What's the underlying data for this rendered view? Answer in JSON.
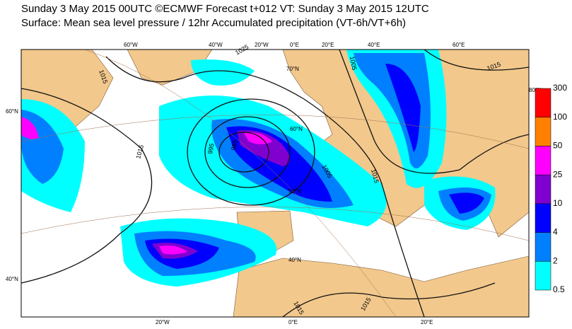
{
  "header": {
    "title": "Sunday 3 May 2015 00UTC ©ECMWF Forecast t+012 VT: Sunday 3 May 2015 12UTC",
    "subtitle": "Surface: Mean sea level pressure / 12hr Accumulated precipitation (VT-6h/VT+6h)"
  },
  "map": {
    "labels": [
      "60°W",
      "40°W",
      "20°W",
      "0°E",
      "20°E",
      "40°E",
      "60°E",
      "20°W",
      "0°E",
      "20°E",
      "60°N",
      "40°N",
      "70°N",
      "60°N",
      "50°N",
      "40°N",
      "80°N"
    ],
    "isobar_labels": [
      "1015",
      "1025",
      "1015",
      "995",
      "985",
      "1005",
      "1005",
      "1015",
      "1015",
      "1015",
      "1015"
    ]
  },
  "legend": {
    "levels": [
      0.5,
      2,
      4,
      10,
      25,
      50,
      100,
      300
    ],
    "colors": [
      "#00ffff",
      "#0080ff",
      "#0000ff",
      "#8000d0",
      "#ff00ff",
      "#ff8000",
      "#ff0000"
    ]
  }
}
